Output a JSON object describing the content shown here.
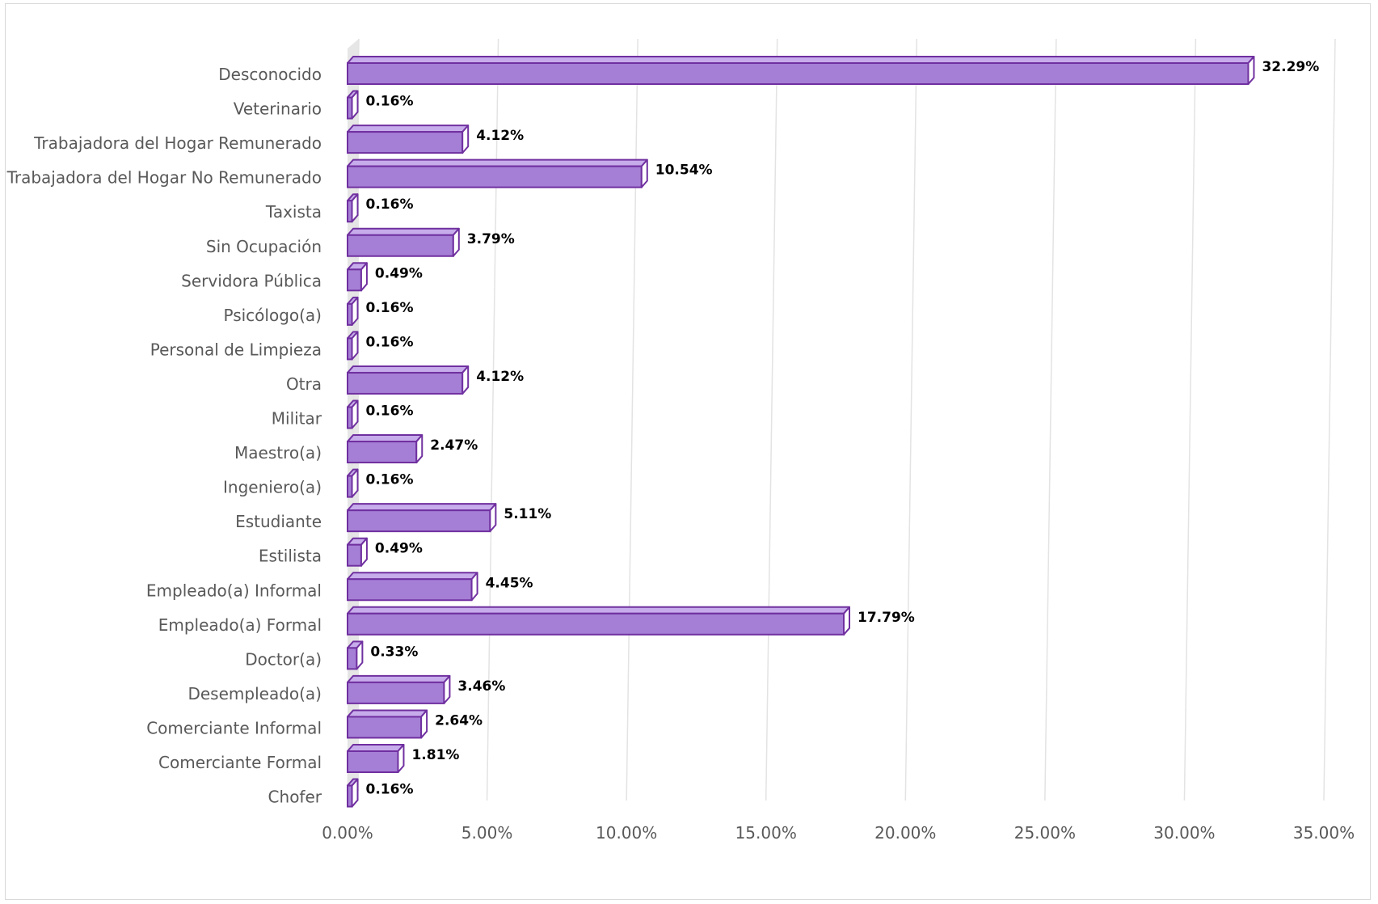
{
  "chart_data": {
    "type": "bar",
    "orientation": "horizontal",
    "categories": [
      "Desconocido",
      "Veterinario",
      "Trabajadora del Hogar Remunerado",
      "Trabajadora del Hogar No Remunerado",
      "Taxista",
      "Sin Ocupación",
      "Servidora Pública",
      "Psicólogo(a)",
      "Personal de Limpieza",
      "Otra",
      "Militar",
      "Maestro(a)",
      "Ingeniero(a)",
      "Estudiante",
      "Estilista",
      "Empleado(a) Informal",
      "Empleado(a) Formal",
      "Doctor(a)",
      "Desempleado(a)",
      "Comerciante Informal",
      "Comerciante Formal",
      "Chofer"
    ],
    "values": [
      32.29,
      0.16,
      4.12,
      10.54,
      0.16,
      3.79,
      0.49,
      0.16,
      0.16,
      4.12,
      0.16,
      2.47,
      0.16,
      5.11,
      0.49,
      4.45,
      17.79,
      0.33,
      3.46,
      2.64,
      1.81,
      0.16
    ],
    "data_labels": [
      "32.29%",
      "0.16%",
      "4.12%",
      "10.54%",
      "0.16%",
      "3.79%",
      "0.49%",
      "0.16%",
      "0.16%",
      "4.12%",
      "0.16%",
      "2.47%",
      "0.16%",
      "5.11%",
      "0.49%",
      "4.45%",
      "17.79%",
      "0.33%",
      "3.46%",
      "2.64%",
      "1.81%",
      "0.16%"
    ],
    "x_ticks": [
      "0.00%",
      "5.00%",
      "10.00%",
      "15.00%",
      "20.00%",
      "25.00%",
      "30.00%",
      "35.00%"
    ],
    "xlim": [
      0,
      35
    ],
    "title": "",
    "xlabel": "",
    "ylabel": "",
    "grid": true,
    "legend": "none",
    "style": "3d-bar",
    "colors": {
      "bar_face": "#a57fd5",
      "bar_top": "#c7aceb",
      "bar_side": "#8d62c4",
      "bar_edge": "#7030a0",
      "grid": "#e3e3e3",
      "axis_text": "#595959",
      "label_text": "#000000"
    }
  }
}
